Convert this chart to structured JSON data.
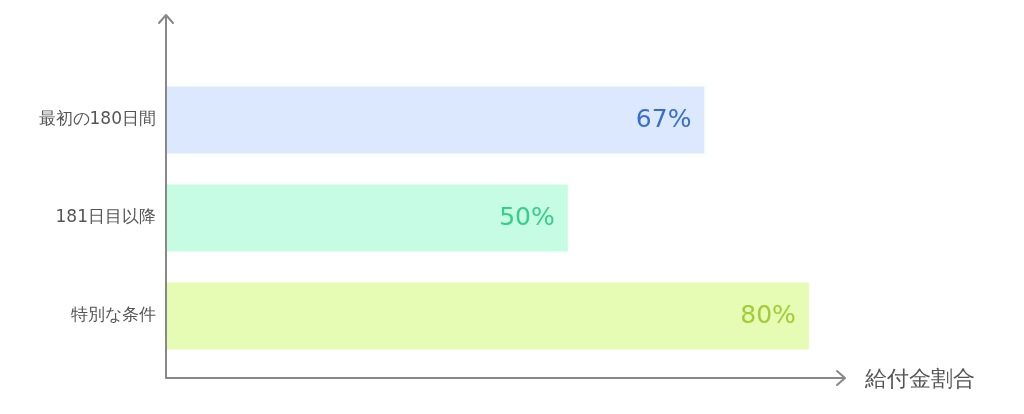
{
  "chart_data": {
    "type": "bar",
    "orientation": "horizontal",
    "categories": [
      "最初の180日間",
      "181日目以降",
      "特別な条件"
    ],
    "values": [
      67,
      50,
      80
    ],
    "colors": [
      "#dbe8fe",
      "#c6fce4",
      "#e6fcb4"
    ],
    "value_labels": [
      "67%",
      "50%",
      "80%"
    ],
    "xlabel": "給付金割合",
    "xlim": [
      0,
      84
    ],
    "tick_labels": "y"
  }
}
